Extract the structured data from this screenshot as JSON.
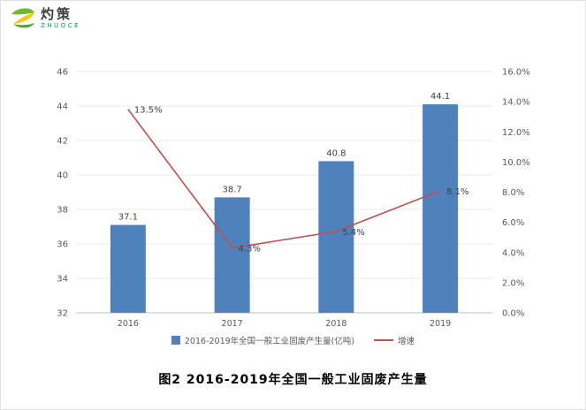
{
  "logo": {
    "brand_cn": "灼策",
    "brand_en": "ZHUOCE"
  },
  "chart_data": {
    "type": "bar",
    "subtype": "bar-line-combo",
    "categories": [
      "2016",
      "2017",
      "2018",
      "2019"
    ],
    "series": [
      {
        "name": "2016-2019年全国一般工业固废产生量(亿吨)",
        "type": "bar",
        "axis": "left",
        "color": "#4f81bd",
        "values": [
          37.1,
          38.7,
          40.8,
          44.1
        ],
        "labels": [
          "37.1",
          "38.7",
          "40.8",
          "44.1"
        ]
      },
      {
        "name": "增速",
        "type": "line",
        "axis": "right",
        "color": "#c0504d",
        "values": [
          13.5,
          4.3,
          5.4,
          8.1
        ],
        "labels": [
          "13.5%",
          "4.3%",
          "5.4%",
          "8.1%"
        ]
      }
    ],
    "left_axis": {
      "min": 32,
      "max": 46,
      "step": 2,
      "ticks": [
        "32",
        "34",
        "36",
        "38",
        "40",
        "42",
        "44",
        "46"
      ]
    },
    "right_axis": {
      "min": 0,
      "max": 16,
      "step": 2,
      "ticks": [
        "0.0%",
        "2.0%",
        "4.0%",
        "6.0%",
        "8.0%",
        "10.0%",
        "12.0%",
        "14.0%",
        "16.0%"
      ]
    },
    "grid": true,
    "legend_position": "bottom"
  },
  "caption": "图2   2016-2019年全国一般工业固废产生量"
}
